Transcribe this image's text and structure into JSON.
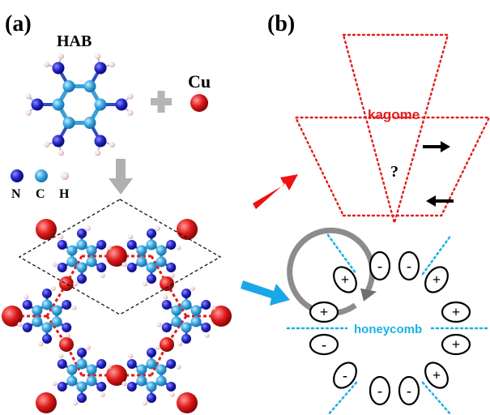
{
  "panel_a": {
    "label": "(a)",
    "molecule_label": "HAB",
    "metal_label": "Cu",
    "plus_sign": "+",
    "legend": [
      {
        "symbol": "N",
        "color": "#1f1fb8"
      },
      {
        "symbol": "C",
        "color": "#3aa0d8"
      },
      {
        "symbol": "H",
        "color": "#e8cfd0"
      }
    ]
  },
  "panel_b": {
    "label": "(b)",
    "kagome_label": "kagome",
    "question_mark": "?",
    "honeycomb_label": "honeycomb",
    "signs": [
      "-",
      "-",
      "+",
      "+",
      "+",
      "+",
      "-",
      "-",
      "-",
      "-",
      "+",
      "+"
    ]
  },
  "colors": {
    "nitrogen": "#1f1fb8",
    "carbon": "#3aa0d8",
    "hydrogen": "#e8cfd0",
    "copper": "#e01b1b",
    "kagome": "#e02020",
    "honeycomb_text": "#1ab0e6",
    "honeycomb_dots": "#1ab0e6",
    "red_arrow": "#ee1111",
    "blue_arrow": "#1aa7e8",
    "gray_arrow": "#b0b0b0",
    "circle_arrow": "#8c8c8c"
  },
  "icons": {
    "red_arrow": "arrow-right-up-icon",
    "blue_arrow": "arrow-right-down-icon",
    "down_arrow": "arrow-down-icon",
    "small_arrows": "arrow-left-right-icon"
  }
}
